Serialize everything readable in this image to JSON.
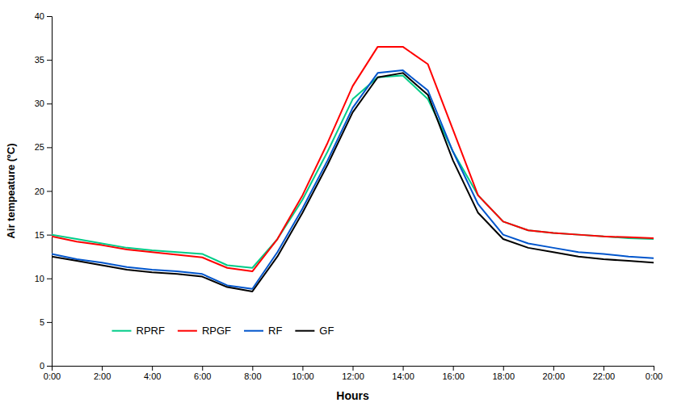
{
  "chart_data": {
    "type": "line",
    "xlabel": "Hours",
    "ylabel": "Air tempeature (ºC)",
    "x": [
      0,
      1,
      2,
      3,
      4,
      5,
      6,
      7,
      8,
      9,
      10,
      11,
      12,
      13,
      14,
      15,
      16,
      17,
      18,
      19,
      20,
      21,
      22,
      23,
      24
    ],
    "xlim": [
      0,
      24
    ],
    "xticks": [
      {
        "value": 0,
        "label": "0:00"
      },
      {
        "value": 2,
        "label": "2:00"
      },
      {
        "value": 4,
        "label": "4:00"
      },
      {
        "value": 6,
        "label": "6:00"
      },
      {
        "value": 8,
        "label": "8:00"
      },
      {
        "value": 10,
        "label": "10:00"
      },
      {
        "value": 12,
        "label": "12:00"
      },
      {
        "value": 14,
        "label": "14:00"
      },
      {
        "value": 16,
        "label": "16:00"
      },
      {
        "value": 18,
        "label": "18:00"
      },
      {
        "value": 20,
        "label": "20:00"
      },
      {
        "value": 22,
        "label": "22:00"
      },
      {
        "value": 24,
        "label": "0:00"
      }
    ],
    "ylim": [
      0,
      40
    ],
    "yticks": [
      0,
      5,
      10,
      15,
      20,
      25,
      30,
      35,
      40
    ],
    "grid": false,
    "legend": "lower-left",
    "series": [
      {
        "name": "RPRF",
        "color": "#00CC88",
        "values": [
          15.0,
          14.5,
          14.0,
          13.5,
          13.2,
          13.0,
          12.8,
          11.5,
          11.2,
          14.5,
          19.0,
          24.5,
          30.5,
          33.0,
          33.2,
          30.5,
          24.5,
          19.5,
          16.5,
          15.5,
          15.2,
          15.0,
          14.8,
          14.6,
          14.5
        ]
      },
      {
        "name": "RPGF",
        "color": "#FF0000",
        "values": [
          14.8,
          14.2,
          13.8,
          13.3,
          13.0,
          12.7,
          12.4,
          11.2,
          10.8,
          14.5,
          19.5,
          25.5,
          32.0,
          36.5,
          36.5,
          34.5,
          27.0,
          19.5,
          16.5,
          15.5,
          15.2,
          15.0,
          14.8,
          14.7,
          14.6
        ]
      },
      {
        "name": "RF",
        "color": "#0055CC",
        "values": [
          12.8,
          12.2,
          11.8,
          11.3,
          11.0,
          10.8,
          10.5,
          9.2,
          8.8,
          13.0,
          18.0,
          23.5,
          29.5,
          33.5,
          33.8,
          31.5,
          24.5,
          18.5,
          15.0,
          14.0,
          13.5,
          13.0,
          12.8,
          12.5,
          12.3
        ]
      },
      {
        "name": "GF",
        "color": "#000000",
        "values": [
          12.5,
          12.0,
          11.5,
          11.0,
          10.7,
          10.5,
          10.2,
          9.0,
          8.5,
          12.5,
          17.5,
          23.0,
          29.0,
          33.0,
          33.5,
          31.0,
          23.5,
          17.5,
          14.5,
          13.5,
          13.0,
          12.5,
          12.2,
          12.0,
          11.8
        ]
      }
    ]
  }
}
